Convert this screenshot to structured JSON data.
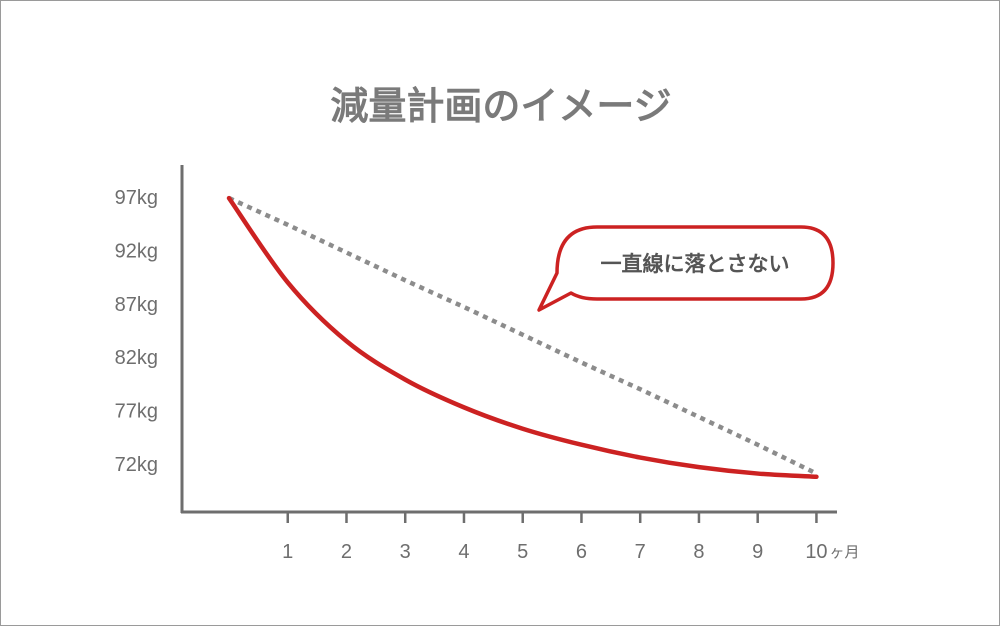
{
  "chart_data": {
    "type": "line",
    "title": "減量計画のイメージ",
    "x": [
      0,
      1,
      2,
      3,
      4,
      5,
      6,
      7,
      8,
      9,
      10
    ],
    "x_tick_labels": [
      "1",
      "2",
      "3",
      "4",
      "5",
      "6",
      "7",
      "8",
      "9",
      "10"
    ],
    "x_unit": "ヶ月",
    "y_tick_labels": [
      "97kg",
      "92kg",
      "87kg",
      "82kg",
      "77kg",
      "72kg"
    ],
    "y_ticks": [
      97,
      92,
      87,
      82,
      77,
      72
    ],
    "ylim": [
      67.5,
      100
    ],
    "xlim": [
      -0.8,
      10.35
    ],
    "series": [
      {
        "style": "solid",
        "color": "#cc2222",
        "values": [
          96.9,
          89.0,
          83.5,
          79.9,
          77.3,
          75.3,
          73.8,
          72.6,
          71.7,
          71.1,
          70.8
        ]
      },
      {
        "style": "dotted",
        "color": "#8c8c8c",
        "values": [
          96.9,
          94.4,
          91.8,
          89.2,
          86.7,
          84.1,
          81.5,
          79.0,
          76.4,
          73.8,
          71.1
        ]
      }
    ],
    "annotation": {
      "text": "一直線に落とさない",
      "style": "speech-bubble"
    },
    "grid": false,
    "legend": "none"
  }
}
